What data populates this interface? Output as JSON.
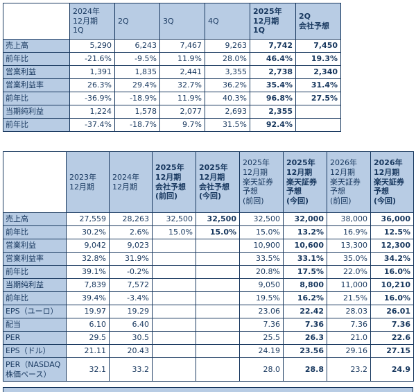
{
  "colors": {
    "header_bg": "#b8cce4",
    "border": "#17375e",
    "text": "#17375e",
    "cell_bg": "#ffffff"
  },
  "chart_data": [
    {
      "type": "table",
      "name": "quarterly-results",
      "headers": [
        "",
        "2024年\n12月期\n1Q",
        "2Q",
        "3Q",
        "4Q",
        "2025年\n12月期\n1Q",
        "2Q\n会社予想"
      ],
      "bold_header_indexes": [
        5,
        6
      ],
      "bold_value_columns": [
        4,
        5
      ],
      "rows": [
        {
          "label": "売上高",
          "values": [
            "5,290",
            "6,243",
            "7,467",
            "9,263",
            "7,742",
            "7,450"
          ]
        },
        {
          "label": "前年比",
          "values": [
            "-21.6%",
            "-9.5%",
            "11.9%",
            "28.0%",
            "46.4%",
            "19.3%"
          ]
        },
        {
          "label": "営業利益",
          "values": [
            "1,391",
            "1,835",
            "2,441",
            "3,355",
            "2,738",
            "2,340"
          ]
        },
        {
          "label": "営業利益率",
          "values": [
            "26.3%",
            "29.4%",
            "32.7%",
            "36.2%",
            "35.4%",
            "31.4%"
          ]
        },
        {
          "label": "前年比",
          "values": [
            "-36.9%",
            "-18.9%",
            "11.9%",
            "40.3%",
            "96.8%",
            "27.5%"
          ]
        },
        {
          "label": "当期純利益",
          "values": [
            "1,224",
            "1,578",
            "2,077",
            "2,693",
            "2,355",
            ""
          ]
        },
        {
          "label": "前年比",
          "values": [
            "-37.4%",
            "-18.7%",
            "9.7%",
            "31.5%",
            "92.4%",
            ""
          ]
        }
      ]
    },
    {
      "type": "table",
      "name": "annual-forecast",
      "headers": [
        "",
        "2023年\n12月期",
        "2024年\n12月期",
        "2025年\n12月期\n会社予想\n(前回)",
        "2025年\n12月期\n会社予想\n(今回)",
        "2025年\n12月期\n楽天証券\n予想\n(前回)",
        "2025年\n12月期\n楽天証券\n予想\n(今回)",
        "2026年\n12月期\n楽天証券\n予想\n(前回)",
        "2026年\n12月期\n楽天証券\n予想\n(今回)"
      ],
      "bold_header_indexes": [
        3,
        4,
        6,
        8
      ],
      "bold_value_columns": [
        3,
        5,
        7
      ],
      "rows": [
        {
          "label": "売上高",
          "values": [
            "27,559",
            "28,263",
            "32,500",
            "32,500",
            "32,500",
            "32,000",
            "38,000",
            "36,000"
          ]
        },
        {
          "label": "前年比",
          "values": [
            "30.2%",
            "2.6%",
            "15.0%",
            "15.0%",
            "15.0%",
            "13.2%",
            "16.9%",
            "12.5%"
          ]
        },
        {
          "label": "営業利益",
          "values": [
            "9,042",
            "9,023",
            "",
            "",
            "10,900",
            "10,600",
            "13,300",
            "12,300"
          ]
        },
        {
          "label": "営業利益率",
          "values": [
            "32.8%",
            "31.9%",
            "",
            "",
            "33.5%",
            "33.1%",
            "35.0%",
            "34.2%"
          ]
        },
        {
          "label": "前年比",
          "values": [
            "39.1%",
            "-0.2%",
            "",
            "",
            "20.8%",
            "17.5%",
            "22.0%",
            "16.0%"
          ]
        },
        {
          "label": "当期純利益",
          "values": [
            "7,839",
            "7,572",
            "",
            "",
            "9,050",
            "8,800",
            "11,000",
            "10,210"
          ]
        },
        {
          "label": "前年比",
          "values": [
            "39.4%",
            "-3.4%",
            "",
            "",
            "19.5%",
            "16.2%",
            "21.5%",
            "16.0%"
          ]
        },
        {
          "label": "EPS（ユーロ）",
          "values": [
            "19.97",
            "19.29",
            "",
            "",
            "23.06",
            "22.42",
            "28.03",
            "26.01"
          ]
        },
        {
          "label": "配当",
          "values": [
            "6.10",
            "6.40",
            "",
            "",
            "7.36",
            "7.36",
            "7.36",
            "7.36"
          ]
        },
        {
          "label": "PER",
          "values": [
            "29.5",
            "30.5",
            "",
            "",
            "25.5",
            "26.3",
            "21.0",
            "22.6"
          ]
        },
        {
          "label": "EPS（ドル）",
          "values": [
            "21.11",
            "20.43",
            "",
            "",
            "24.19",
            "23.56",
            "29.16",
            "27.15"
          ]
        },
        {
          "label": "PER（NASDAQ\n株価ベース）",
          "values": [
            "32.1",
            "33.2",
            "",
            "",
            "28.0",
            "28.8",
            "23.2",
            "24.9"
          ]
        }
      ]
    }
  ]
}
